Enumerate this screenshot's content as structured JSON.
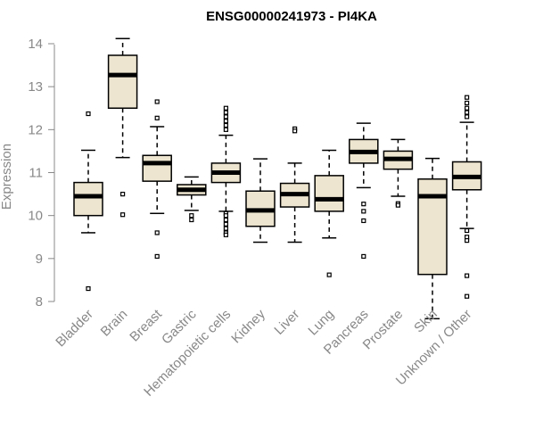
{
  "chart_data": {
    "type": "boxplot",
    "title": "ENSG00000241973 - PI4KA",
    "xlabel": "",
    "ylabel": "Expression",
    "ylim": [
      7.5,
      14.4
    ],
    "yticks": [
      8,
      9,
      10,
      11,
      12,
      13,
      14
    ],
    "grid": false,
    "colors": {
      "box_fill": "#ede5cf",
      "box_stroke": "#000000",
      "axis": "#888888"
    },
    "categories": [
      "Bladder",
      "Brain",
      "Breast",
      "Gastric",
      "Hematopoietic cells",
      "Kidney",
      "Liver",
      "Lung",
      "Pancreas",
      "Prostate",
      "Skin",
      "Unknown / Other"
    ],
    "boxes": [
      {
        "category": "Bladder",
        "whisker_low": 9.6,
        "q1": 10.0,
        "median": 10.45,
        "q3": 10.77,
        "whisker_high": 11.52,
        "outliers": [
          12.37,
          8.3
        ]
      },
      {
        "category": "Brain",
        "whisker_low": 11.35,
        "q1": 12.5,
        "median": 13.27,
        "q3": 13.73,
        "whisker_high": 14.12,
        "outliers": [
          10.5,
          10.02
        ]
      },
      {
        "category": "Breast",
        "whisker_low": 10.05,
        "q1": 10.8,
        "median": 11.22,
        "q3": 11.4,
        "whisker_high": 12.07,
        "outliers": [
          12.65,
          12.27,
          9.6,
          9.05
        ]
      },
      {
        "category": "Gastric",
        "whisker_low": 10.12,
        "q1": 10.48,
        "median": 10.6,
        "q3": 10.72,
        "whisker_high": 10.9,
        "outliers": [
          10.0,
          9.9
        ]
      },
      {
        "category": "Hematopoietic cells",
        "whisker_low": 10.1,
        "q1": 10.77,
        "median": 11.0,
        "q3": 11.22,
        "whisker_high": 11.87,
        "outliers": [
          12.5,
          12.4,
          12.3,
          12.2,
          12.1,
          12.0,
          10.05,
          10.0,
          9.9,
          9.8,
          9.7,
          9.6,
          9.55
        ]
      },
      {
        "category": "Kidney",
        "whisker_low": 9.38,
        "q1": 9.75,
        "median": 10.12,
        "q3": 10.57,
        "whisker_high": 11.32,
        "outliers": []
      },
      {
        "category": "Liver",
        "whisker_low": 9.38,
        "q1": 10.2,
        "median": 10.5,
        "q3": 10.75,
        "whisker_high": 11.22,
        "outliers": [
          12.02,
          11.97
        ]
      },
      {
        "category": "Lung",
        "whisker_low": 9.48,
        "q1": 10.1,
        "median": 10.38,
        "q3": 10.93,
        "whisker_high": 11.52,
        "outliers": [
          8.62
        ]
      },
      {
        "category": "Pancreas",
        "whisker_low": 10.65,
        "q1": 11.22,
        "median": 11.48,
        "q3": 11.77,
        "whisker_high": 12.15,
        "outliers": [
          10.27,
          10.1,
          9.88,
          9.05
        ]
      },
      {
        "category": "Prostate",
        "whisker_low": 10.45,
        "q1": 11.08,
        "median": 11.32,
        "q3": 11.5,
        "whisker_high": 11.77,
        "outliers": [
          10.28,
          10.24
        ]
      },
      {
        "category": "Skin",
        "whisker_low": 7.6,
        "q1": 8.63,
        "median": 10.45,
        "q3": 10.85,
        "whisker_high": 11.33,
        "outliers": []
      },
      {
        "category": "Unknown / Other",
        "whisker_low": 9.7,
        "q1": 10.6,
        "median": 10.9,
        "q3": 11.25,
        "whisker_high": 12.17,
        "outliers": [
          12.75,
          12.62,
          12.5,
          12.4,
          12.3,
          9.65,
          9.5,
          9.42,
          8.6,
          8.12
        ]
      }
    ]
  }
}
